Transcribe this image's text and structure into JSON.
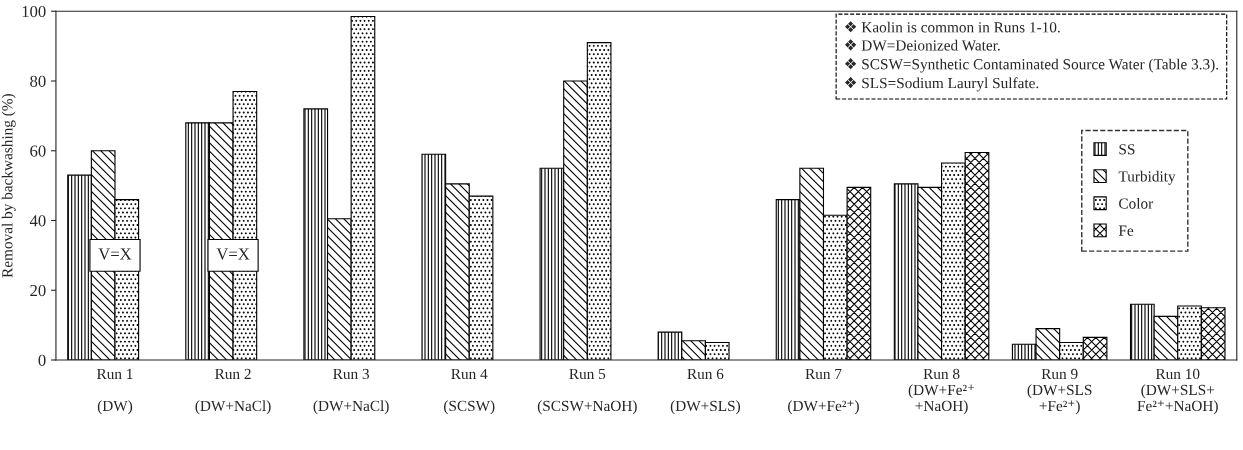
{
  "chart_data": {
    "type": "bar",
    "ylabel": "Removal by backwashing (%)",
    "categories": [
      "Run 1\n\n(DW)",
      "Run 2\n\n(DW+NaCl)",
      "Run 3\n\n(DW+NaCl)",
      "Run 4\n\n(SCSW)",
      "Run 5\n\n(SCSW+NaOH)",
      "Run 6\n\n(DW+SLS)",
      "Run 7\n\n(DW+Fe²⁺)",
      "Run 8\n(DW+Fe²⁺\n+NaOH)",
      "Run 9\n(DW+SLS\n+Fe²⁺)",
      "Run 10\n(DW+SLS+\nFe²⁺+NaOH)"
    ],
    "series": [
      {
        "name": "SS",
        "color": "#000000",
        "values": [
          53,
          68,
          72,
          59,
          55,
          8,
          46,
          50.5,
          4.5,
          16
        ]
      },
      {
        "name": "Turbidity",
        "color": "#000000",
        "values": [
          60,
          68,
          40.5,
          50.5,
          80,
          5.5,
          55,
          49.5,
          9,
          12.5
        ]
      },
      {
        "name": "Color",
        "color": "#000000",
        "values": [
          46,
          77,
          98.5,
          47,
          91,
          5,
          41.5,
          56.5,
          5,
          15.5
        ]
      },
      {
        "name": "Fe",
        "color": "#000000",
        "values": [
          null,
          null,
          null,
          null,
          null,
          null,
          49.5,
          59.5,
          6.5,
          15
        ]
      }
    ],
    "ylim": [
      0,
      100
    ],
    "yticks": [
      0,
      20,
      40,
      60,
      80,
      100
    ],
    "grid": false,
    "legend": "right",
    "annotations": [
      "❖ Kaolin is common in Runs 1-10.",
      "❖ DW=Deionized Water.",
      "❖ SCSW=Synthetic Contaminated Source Water (Table 3.3).",
      "❖ SLS=Sodium Lauryl Sulfate.",
      {
        "text": "V=X",
        "x": "Run 1\n\n(DW)",
        "y": 30
      },
      {
        "text": "V=X",
        "x": "Run 2\n\n(DW+NaCl)",
        "y": 30
      }
    ]
  }
}
